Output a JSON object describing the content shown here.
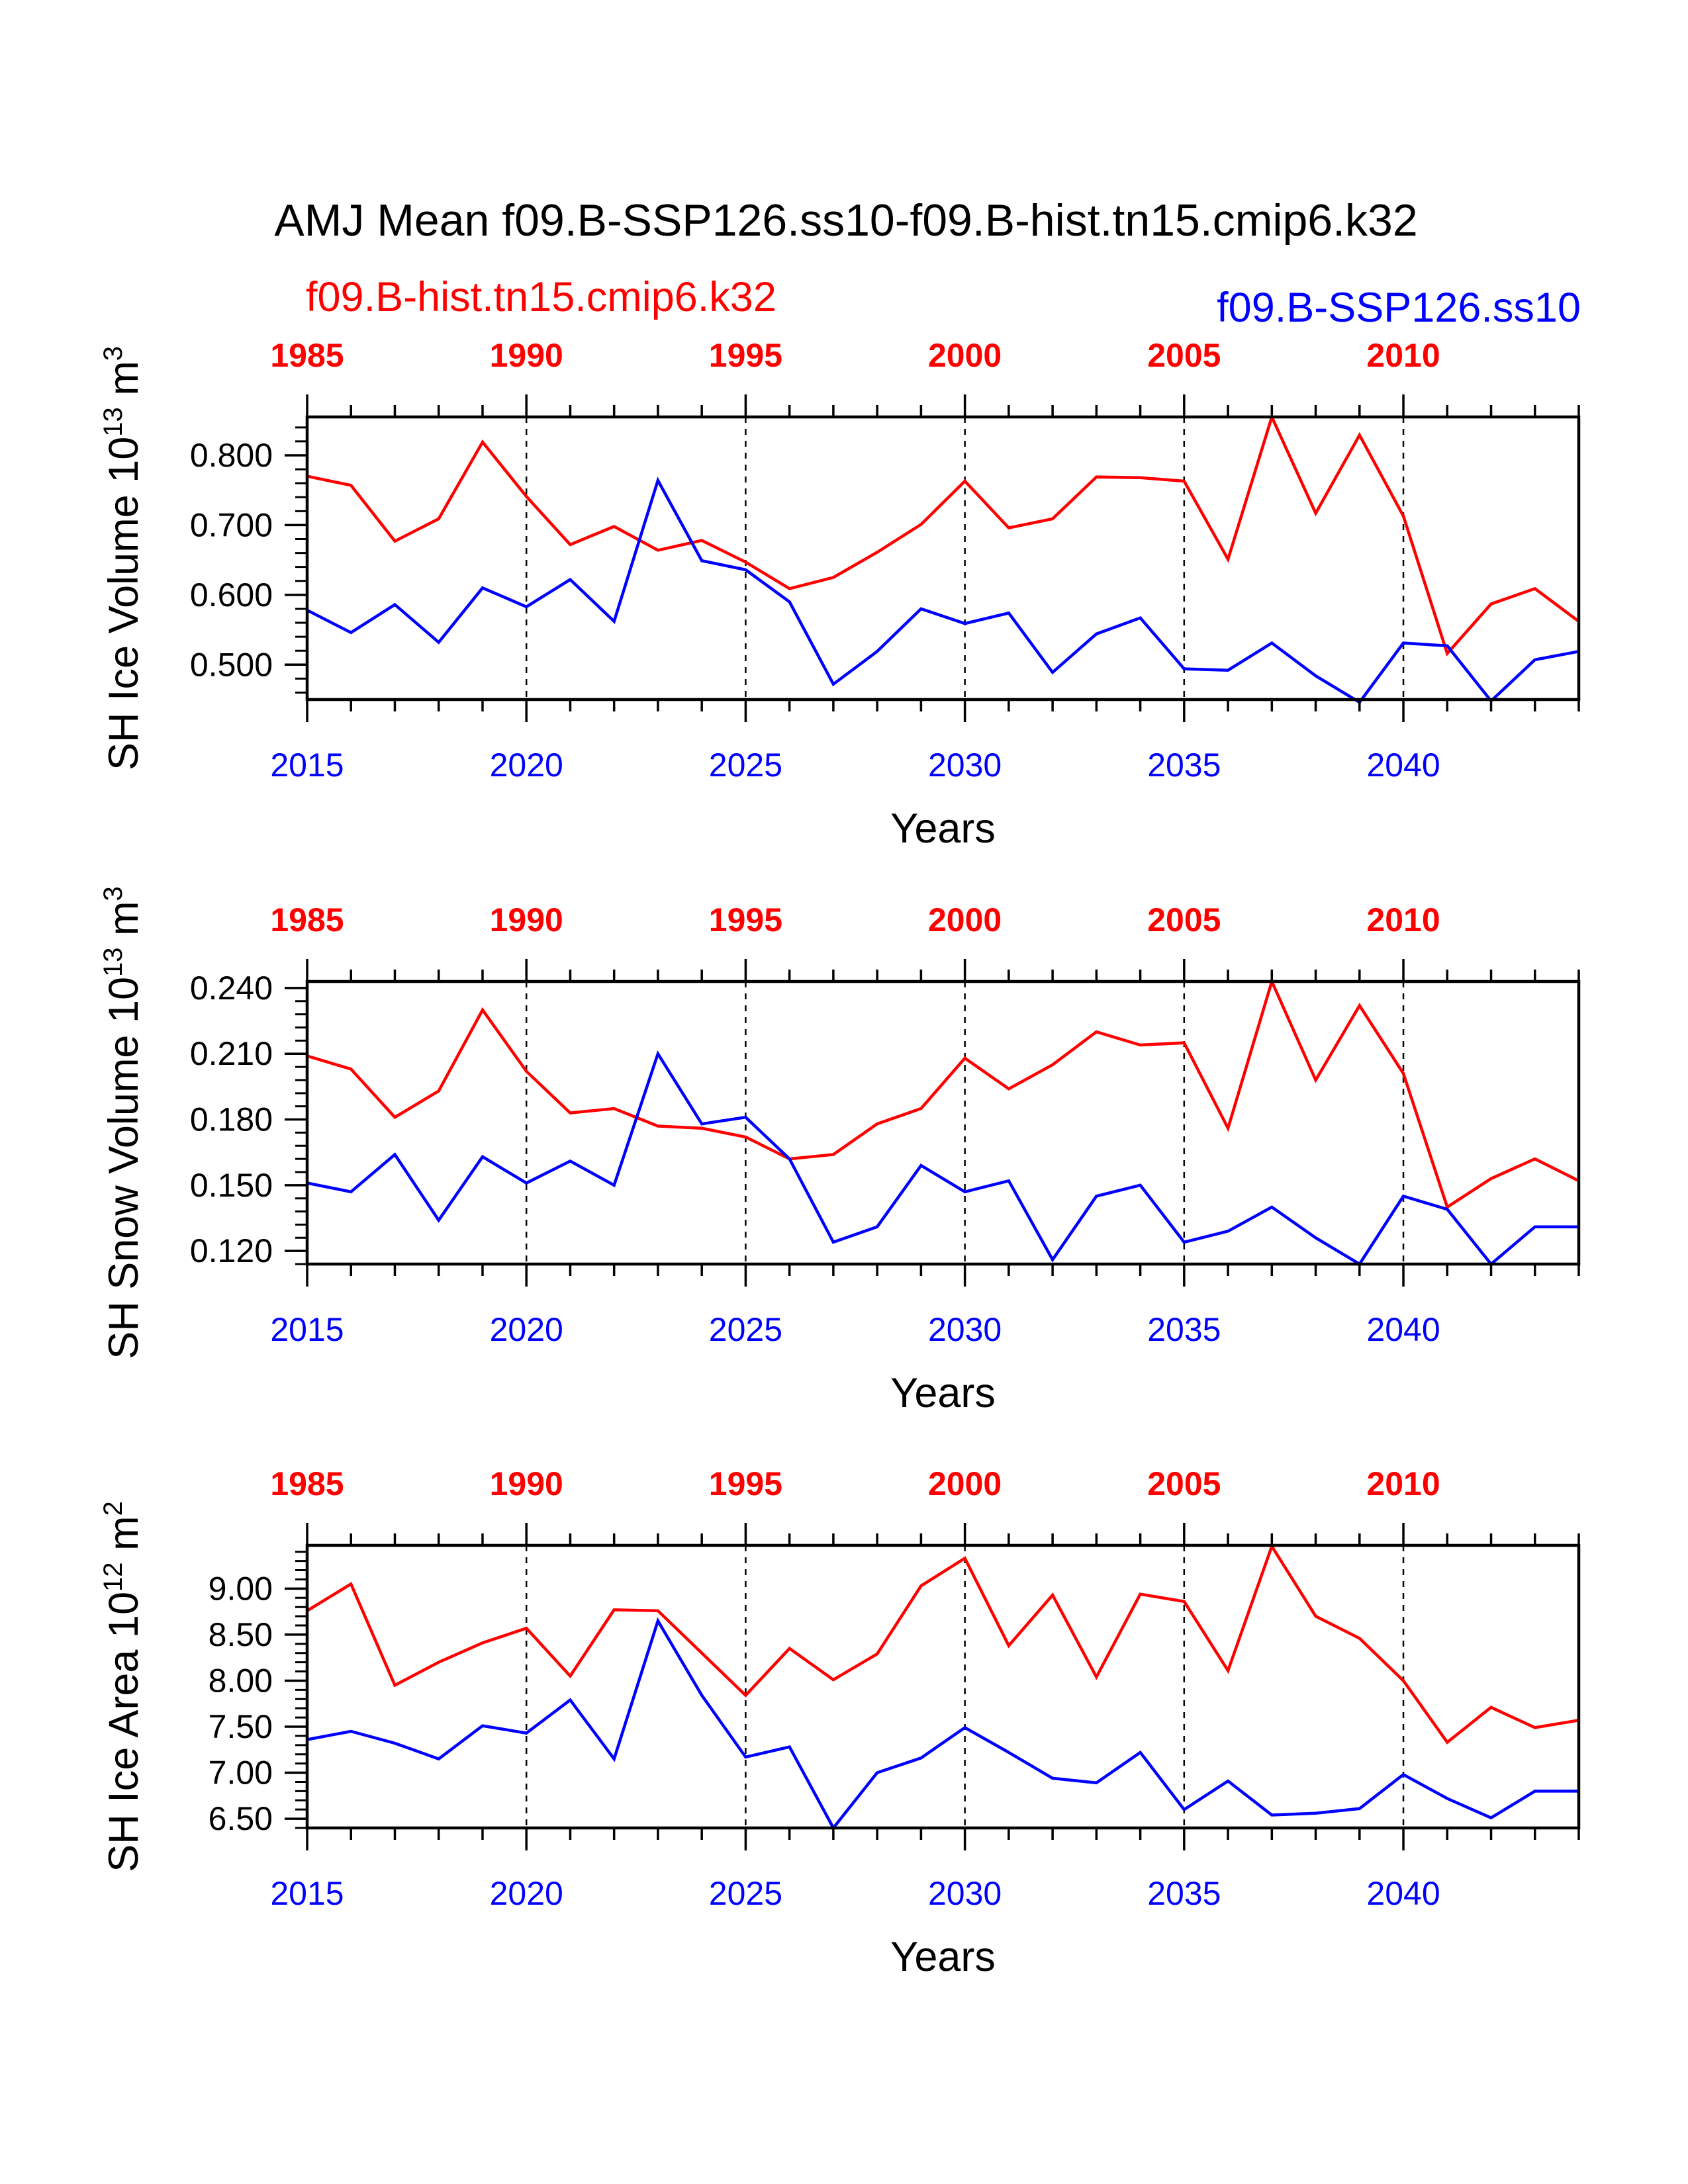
{
  "figure": {
    "title": "AMJ Mean f09.B-SSP126.ss10-f09.B-hist.tn15.cmip6.k32",
    "legend_left": "f09.B-hist.tn15.cmip6.k32",
    "legend_right": "f09.B-SSP126.ss10",
    "colors": {
      "hist": "#ff0000",
      "ssp": "#0000ff",
      "axis": "#000000"
    }
  },
  "chart_data": [
    {
      "type": "line",
      "ylabel": "SH Ice Volume 10",
      "yunit_exp": "13",
      "yunit_tail": " m",
      "yunit_sup": "3",
      "xlabel": "Years",
      "xlim": [
        2015,
        2044
      ],
      "ylim": [
        0.45,
        0.855
      ],
      "yticks": [
        0.5,
        0.6,
        0.7,
        0.8
      ],
      "ytick_labels": [
        "0.500",
        "0.600",
        "0.700",
        "0.800"
      ],
      "yminor_step": 0.02,
      "bottom_ticks": [
        2015,
        2020,
        2025,
        2030,
        2035,
        2040
      ],
      "top_tick_labels": [
        "1985",
        "1990",
        "1995",
        "2000",
        "2005",
        "2010"
      ],
      "vlines": [
        2020,
        2025,
        2030,
        2035,
        2040
      ],
      "x": [
        2015,
        2016,
        2017,
        2018,
        2019,
        2020,
        2021,
        2022,
        2023,
        2024,
        2025,
        2026,
        2027,
        2028,
        2029,
        2030,
        2031,
        2032,
        2033,
        2034,
        2035,
        2036,
        2037,
        2038,
        2039,
        2040,
        2041,
        2042,
        2043,
        2044
      ],
      "series": [
        {
          "name": "f09.B-hist.tn15.cmip6.k32",
          "key": "hist",
          "values": [
            0.77,
            0.757,
            0.677,
            0.709,
            0.819,
            0.741,
            0.672,
            0.698,
            0.664,
            0.678,
            0.647,
            0.609,
            0.625,
            0.661,
            0.701,
            0.763,
            0.696,
            0.709,
            0.769,
            0.768,
            0.763,
            0.651,
            0.855,
            0.717,
            0.829,
            0.713,
            0.516,
            0.587,
            0.609,
            0.562
          ]
        },
        {
          "name": "f09.B-SSP126.ss10",
          "key": "ssp",
          "values": [
            0.578,
            0.546,
            0.586,
            0.532,
            0.61,
            0.583,
            0.622,
            0.562,
            0.764,
            0.649,
            0.636,
            0.59,
            0.472,
            0.519,
            0.58,
            0.559,
            0.574,
            0.489,
            0.544,
            0.567,
            0.494,
            0.492,
            0.531,
            0.484,
            0.446,
            0.531,
            0.527,
            0.448,
            0.507,
            0.519
          ]
        }
      ]
    },
    {
      "type": "line",
      "ylabel": "SH Snow Volume 10",
      "yunit_exp": "13",
      "yunit_tail": " m",
      "yunit_sup": "3",
      "xlabel": "Years",
      "xlim": [
        2015,
        2044
      ],
      "ylim": [
        0.114,
        0.243
      ],
      "yticks": [
        0.12,
        0.15,
        0.18,
        0.21,
        0.24
      ],
      "ytick_labels": [
        "0.120",
        "0.150",
        "0.180",
        "0.210",
        "0.240"
      ],
      "yminor_step": 0.006,
      "bottom_ticks": [
        2015,
        2020,
        2025,
        2030,
        2035,
        2040
      ],
      "top_tick_labels": [
        "1985",
        "1990",
        "1995",
        "2000",
        "2005",
        "2010"
      ],
      "vlines": [
        2020,
        2025,
        2030,
        2035,
        2040
      ],
      "x": [
        2015,
        2016,
        2017,
        2018,
        2019,
        2020,
        2021,
        2022,
        2023,
        2024,
        2025,
        2026,
        2027,
        2028,
        2029,
        2030,
        2031,
        2032,
        2033,
        2034,
        2035,
        2036,
        2037,
        2038,
        2039,
        2040,
        2041,
        2042,
        2043,
        2044
      ],
      "series": [
        {
          "name": "f09.B-hist.tn15.cmip6.k32",
          "key": "hist",
          "values": [
            0.209,
            0.203,
            0.181,
            0.193,
            0.23,
            0.202,
            0.183,
            0.185,
            0.177,
            0.176,
            0.172,
            0.162,
            0.164,
            0.178,
            0.185,
            0.208,
            0.194,
            0.205,
            0.22,
            0.214,
            0.215,
            0.176,
            0.243,
            0.198,
            0.232,
            0.201,
            0.14,
            0.153,
            0.162,
            0.152
          ]
        },
        {
          "name": "f09.B-SSP126.ss10",
          "key": "ssp",
          "values": [
            0.151,
            0.147,
            0.164,
            0.134,
            0.163,
            0.151,
            0.161,
            0.15,
            0.21,
            0.178,
            0.181,
            0.162,
            0.124,
            0.131,
            0.159,
            0.147,
            0.152,
            0.116,
            0.145,
            0.15,
            0.124,
            0.129,
            0.14,
            0.126,
            0.114,
            0.145,
            0.139,
            0.114,
            0.131,
            0.131
          ]
        }
      ]
    },
    {
      "type": "line",
      "ylabel": "SH Ice Area 10",
      "yunit_exp": "12",
      "yunit_tail": " m",
      "yunit_sup": "2",
      "xlabel": "Years",
      "xlim": [
        2015,
        2044
      ],
      "ylim": [
        6.4,
        9.47
      ],
      "yticks": [
        6.5,
        7.0,
        7.5,
        8.0,
        8.5,
        9.0
      ],
      "ytick_labels": [
        "6.50",
        "7.00",
        "7.50",
        "8.00",
        "8.50",
        "9.00"
      ],
      "yminor_step": 0.1,
      "bottom_ticks": [
        2015,
        2020,
        2025,
        2030,
        2035,
        2040
      ],
      "top_tick_labels": [
        "1985",
        "1990",
        "1995",
        "2000",
        "2005",
        "2010"
      ],
      "vlines": [
        2020,
        2025,
        2030,
        2035,
        2040
      ],
      "x": [
        2015,
        2016,
        2017,
        2018,
        2019,
        2020,
        2021,
        2022,
        2023,
        2024,
        2025,
        2026,
        2027,
        2028,
        2029,
        2030,
        2031,
        2032,
        2033,
        2034,
        2035,
        2036,
        2037,
        2038,
        2039,
        2040,
        2041,
        2042,
        2043,
        2044
      ],
      "series": [
        {
          "name": "f09.B-hist.tn15.cmip6.k32",
          "key": "hist",
          "values": [
            8.76,
            9.05,
            7.95,
            8.2,
            8.41,
            8.57,
            8.05,
            8.77,
            8.76,
            8.3,
            7.84,
            8.35,
            8.01,
            8.29,
            9.03,
            9.33,
            8.38,
            8.93,
            8.04,
            8.94,
            8.86,
            8.11,
            9.46,
            8.7,
            8.46,
            8.0,
            7.33,
            7.71,
            7.49,
            7.57
          ]
        },
        {
          "name": "f09.B-SSP126.ss10",
          "key": "ssp",
          "values": [
            7.36,
            7.45,
            7.32,
            7.15,
            7.51,
            7.43,
            7.79,
            7.15,
            8.65,
            7.84,
            7.17,
            7.28,
            6.4,
            7.0,
            7.16,
            7.49,
            7.22,
            6.94,
            6.89,
            7.22,
            6.6,
            6.91,
            6.54,
            6.56,
            6.61,
            6.98,
            6.72,
            6.51,
            6.8,
            6.8
          ]
        }
      ]
    }
  ]
}
